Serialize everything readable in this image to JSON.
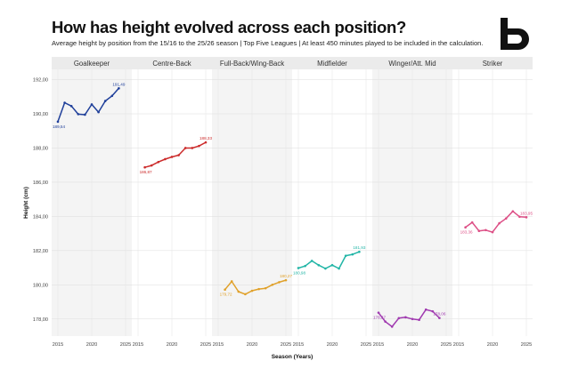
{
  "title": "How has height evolved across each position?",
  "subtitle": "Average height by position from the 15/16 to the 25/26 season | Top Five Leagues | At least 450 minutes played to be included in the calculation.",
  "logo_icon": "b-logo-icon",
  "chart_data": {
    "type": "line",
    "title": "How has height evolved across each position?",
    "xlabel": "Season (Years)",
    "ylabel": "Height (cm)",
    "ylim": [
      177.0,
      192.6
    ],
    "xlim": [
      2015,
      2025
    ],
    "yticks": [
      178,
      180,
      182,
      184,
      186,
      188,
      190,
      192
    ],
    "ytick_labels": [
      "178,00",
      "180,00",
      "182,00",
      "184,00",
      "186,00",
      "188,00",
      "190,00",
      "192,00"
    ],
    "xticks": [
      2015,
      2020,
      2025
    ],
    "xtick_labels": [
      "2015",
      "2020",
      "2025"
    ],
    "grid": true,
    "facets": [
      {
        "name": "Goalkeeper",
        "color": "#1f3f9a",
        "shaded": true,
        "x": [
          2015,
          2016,
          2017,
          2018,
          2019,
          2020,
          2021,
          2022,
          2023,
          2024
        ],
        "values": [
          189.54,
          190.65,
          190.45,
          189.98,
          189.95,
          190.55,
          190.1,
          190.75,
          191.05,
          191.49
        ],
        "start_label": "189,54",
        "end_label": "191,49"
      },
      {
        "name": "Centre-Back",
        "color": "#cc2b2b",
        "shaded": false,
        "x": [
          2016,
          2017,
          2018,
          2019,
          2020,
          2021,
          2022,
          2023,
          2024,
          2025
        ],
        "values": [
          186.87,
          186.98,
          187.18,
          187.35,
          187.48,
          187.58,
          188.0,
          188.0,
          188.12,
          188.33
        ],
        "start_label": "186,87",
        "end_label": "188,33"
      },
      {
        "name": "Full-Back/Wing-Back",
        "color": "#e0a12a",
        "shaded": true,
        "x": [
          2016,
          2017,
          2018,
          2019,
          2020,
          2021,
          2022,
          2023,
          2024,
          2025
        ],
        "values": [
          179.72,
          180.2,
          179.6,
          179.45,
          179.65,
          179.75,
          179.8,
          180.0,
          180.15,
          180.27
        ],
        "start_label": "179,72",
        "end_label": "180,27"
      },
      {
        "name": "Midfielder",
        "color": "#21b5a6",
        "shaded": false,
        "x": [
          2015,
          2016,
          2017,
          2018,
          2019,
          2020,
          2021,
          2022,
          2023,
          2024
        ],
        "values": [
          180.98,
          181.1,
          181.4,
          181.15,
          180.95,
          181.15,
          180.95,
          181.7,
          181.78,
          181.93
        ],
        "start_label": "180,98",
        "end_label": "181,93"
      },
      {
        "name": "Winger/Att. Mid",
        "color": "#a03ab0",
        "shaded": true,
        "x": [
          2015,
          2016,
          2017,
          2018,
          2019,
          2020,
          2021,
          2022,
          2023,
          2024
        ],
        "values": [
          178.37,
          177.85,
          177.55,
          178.05,
          178.1,
          178.0,
          177.95,
          178.55,
          178.45,
          178.06
        ],
        "start_label": "178,37",
        "end_label": "178,06"
      },
      {
        "name": "Striker",
        "color": "#dd4f86",
        "shaded": false,
        "x": [
          2016,
          2017,
          2018,
          2019,
          2020,
          2021,
          2022,
          2023,
          2024,
          2025
        ],
        "values": [
          183.36,
          183.65,
          183.15,
          183.2,
          183.08,
          183.6,
          183.88,
          184.3,
          183.98,
          183.95
        ],
        "start_label": "183,36",
        "end_label": "183,95"
      }
    ]
  }
}
